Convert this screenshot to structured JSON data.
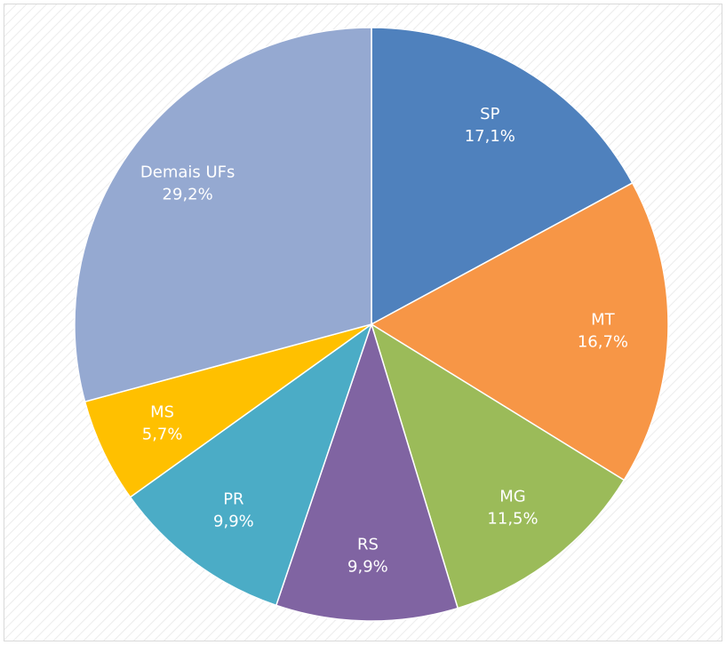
{
  "chart_data": {
    "type": "pie",
    "categories": [
      "SP",
      "MT",
      "MG",
      "RS",
      "PR",
      "MS",
      "Demais UFs"
    ],
    "values": [
      17.1,
      16.7,
      11.5,
      9.9,
      9.9,
      5.7,
      29.2
    ],
    "value_labels": [
      "17,1%",
      "16,7%",
      "11,5%",
      "9,9%",
      "9,9%",
      "5,7%",
      "29,2%"
    ],
    "colors": [
      "#4f81bd",
      "#f79646",
      "#9bbb59",
      "#8064a2",
      "#4bacc6",
      "#ffc000",
      "#95a9d1"
    ]
  }
}
